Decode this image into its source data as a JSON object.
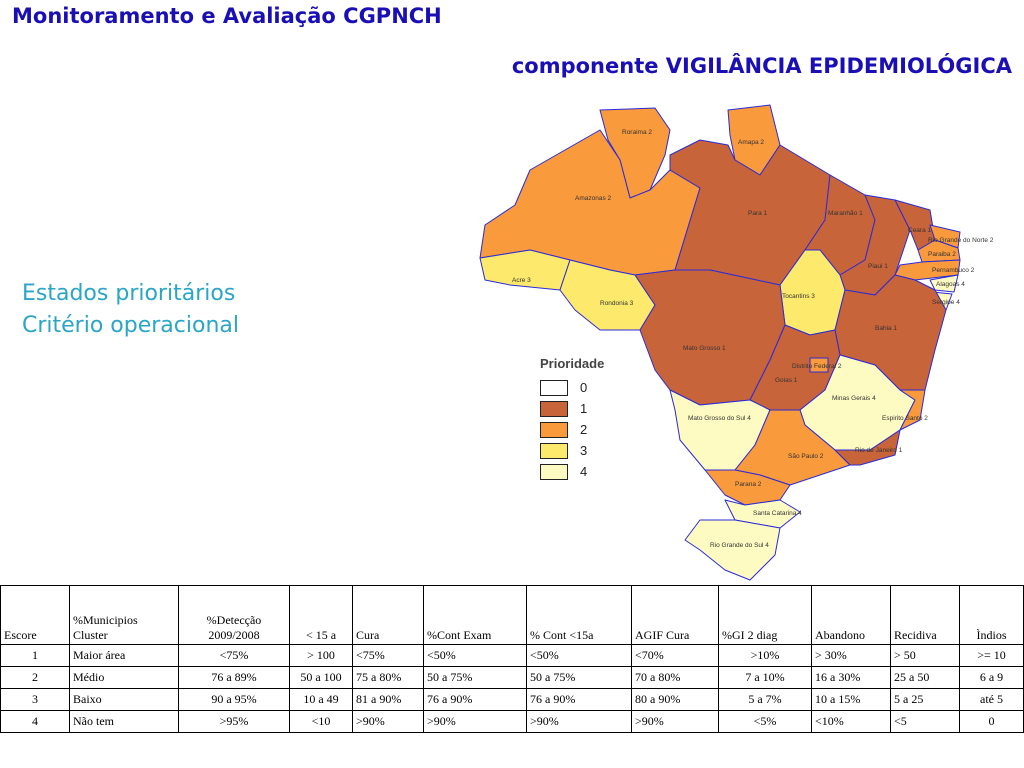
{
  "header": {
    "title": "Monitoramento e Avaliação CGPNCH",
    "subtitle": "componente VIGILÂNCIA EPIDEMIOLÓGICA"
  },
  "side_text": {
    "line1": "Estados prioritários",
    "line2": "Critério operacional"
  },
  "colors": {
    "p0": "#ffffff",
    "p1": "#c8643a",
    "p2": "#f99a3c",
    "p3": "#fde96c",
    "p4": "#fefbc2",
    "border": "#2b2bd8",
    "title": "#1a0fb5",
    "subtitle": "#2aa5c7"
  },
  "legend": {
    "title": "Prioridade",
    "items": [
      "0",
      "1",
      "2",
      "3",
      "4"
    ]
  },
  "map": {
    "states": [
      {
        "label": "Roraima 2",
        "priority": 2
      },
      {
        "label": "Amapa 2",
        "priority": 2
      },
      {
        "label": "Amazonas 2",
        "priority": 2
      },
      {
        "label": "Para 1",
        "priority": 1
      },
      {
        "label": "Maranhão 1",
        "priority": 1
      },
      {
        "label": "Ceara 1",
        "priority": 1
      },
      {
        "label": "Rio Grande do Norte 2",
        "priority": 2
      },
      {
        "label": "Paraiba 2",
        "priority": 2
      },
      {
        "label": "Pernambuco 2",
        "priority": 2
      },
      {
        "label": "Alagoas 4",
        "priority": 4
      },
      {
        "label": "Sergipe 4",
        "priority": 4
      },
      {
        "label": "Piaui 1",
        "priority": 1
      },
      {
        "label": "Acre 3",
        "priority": 3
      },
      {
        "label": "Rondonia 3",
        "priority": 3
      },
      {
        "label": "Tocantins 3",
        "priority": 3
      },
      {
        "label": "Bahia 1",
        "priority": 1
      },
      {
        "label": "Mato Grosso 1",
        "priority": 1
      },
      {
        "label": "Distrito Federal 2",
        "priority": 2
      },
      {
        "label": "Goias 1",
        "priority": 1
      },
      {
        "label": "Minas Gerais 4",
        "priority": 4
      },
      {
        "label": "Espirito Santo 2",
        "priority": 2
      },
      {
        "label": "Mato Grosso do Sul 4",
        "priority": 4
      },
      {
        "label": "São Paulo 2",
        "priority": 2
      },
      {
        "label": "Rio de Janeiro 1",
        "priority": 1
      },
      {
        "label": "Parana 2",
        "priority": 2
      },
      {
        "label": "Santa Catarina 4",
        "priority": 4
      },
      {
        "label": "Rio Grande do Sul 4",
        "priority": 4
      }
    ]
  },
  "table": {
    "headers": [
      "Escore",
      "%Municipios\nCluster",
      "%Detecção\n2009/2008",
      "< 15 a",
      "Cura",
      "%Cont Exam",
      "% Cont <15a",
      "AGIF Cura",
      "%GI 2 diag",
      "Abandono",
      "Recidiva",
      "Ìndios"
    ],
    "rows": [
      [
        "1",
        "Maior área",
        "<75%",
        "> 100",
        "<75%",
        "<50%",
        "<50%",
        "<70%",
        ">10%",
        "> 30%",
        "> 50",
        ">= 10"
      ],
      [
        "2",
        "Médio",
        "76 a 89%",
        "50 a 100",
        "75 a 80%",
        "50 a 75%",
        "50 a 75%",
        "70 a 80%",
        "7 a 10%",
        "16 a 30%",
        "25 a 50",
        "6 a 9"
      ],
      [
        "3",
        "Baixo",
        "90 a 95%",
        "10 a 49",
        "81 a 90%",
        "76 a 90%",
        "76 a 90%",
        "80 a 90%",
        "5 a 7%",
        "10 a 15%",
        "5 a 25",
        "até 5"
      ],
      [
        "4",
        "Não tem",
        ">95%",
        "<10",
        ">90%",
        ">90%",
        ">90%",
        ">90%",
        "<5%",
        "<10%",
        "<5",
        "0"
      ]
    ]
  }
}
